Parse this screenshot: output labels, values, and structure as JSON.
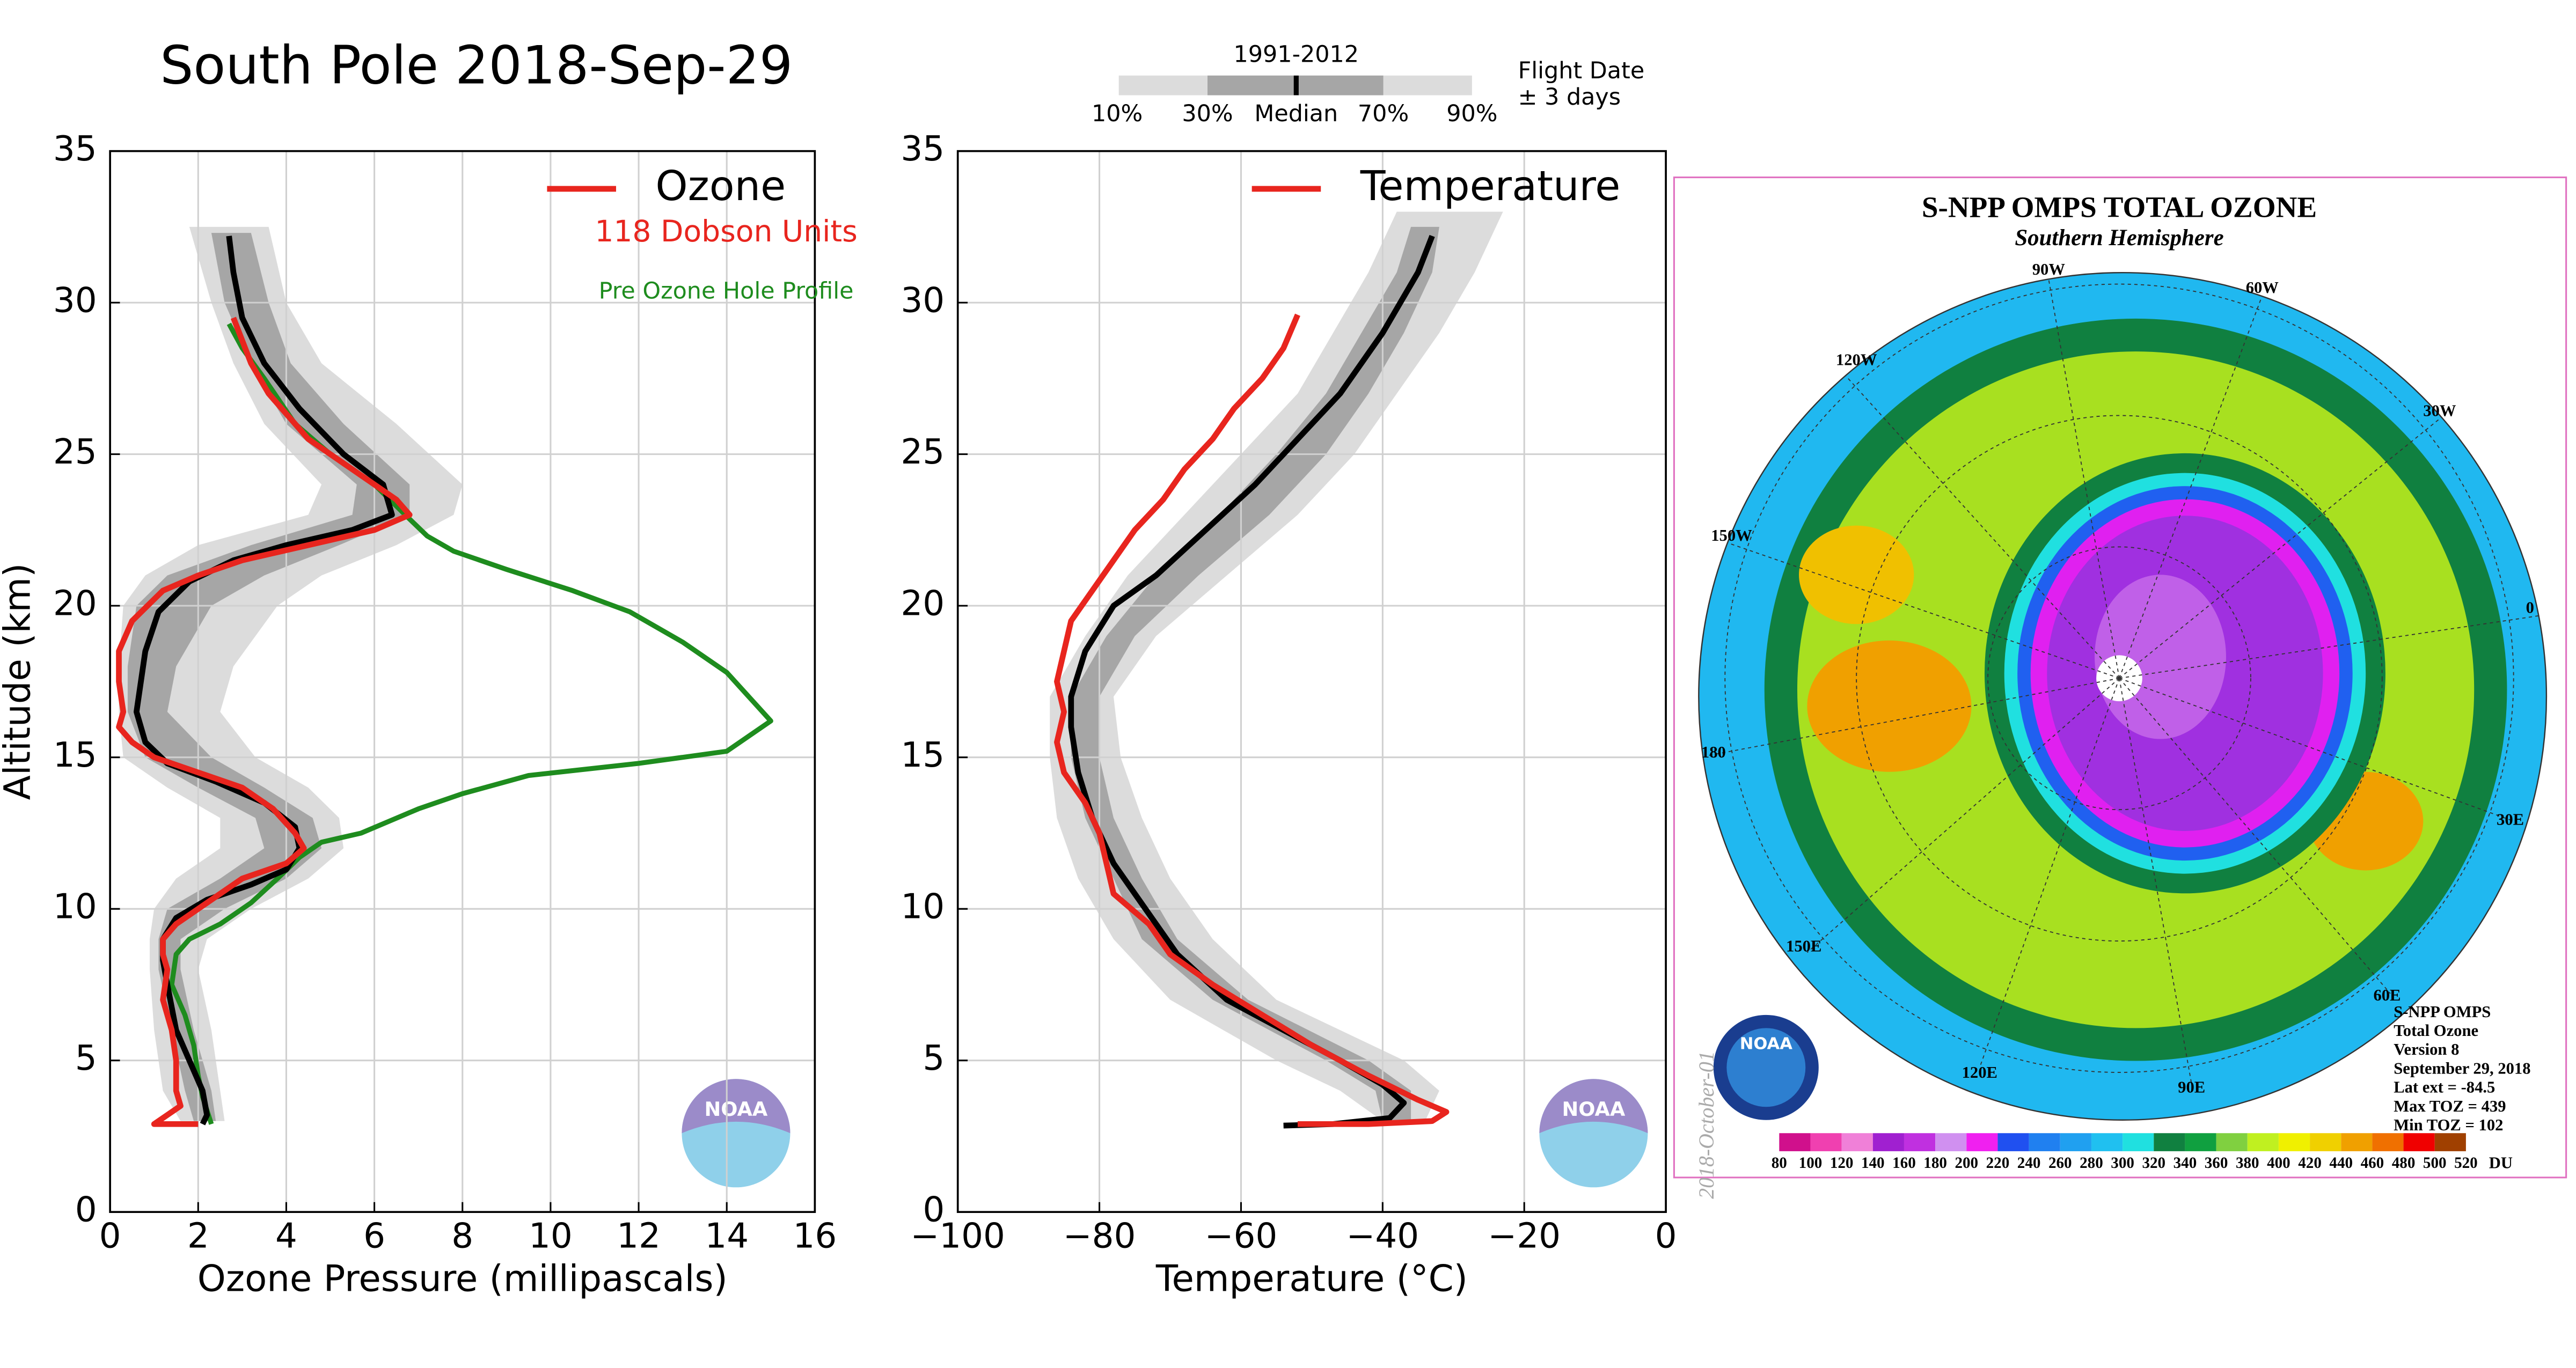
{
  "chart_data": [
    {
      "type": "profile",
      "title": "South Pole 2018-Sep-29",
      "xlabel": "Ozone Pressure (millipascals)",
      "ylabel": "Altitude (km)",
      "xlim": [
        0,
        16
      ],
      "xticks": [
        0,
        2,
        4,
        6,
        8,
        10,
        12,
        14,
        16
      ],
      "ylim": [
        0,
        35
      ],
      "yticks": [
        0,
        5,
        10,
        15,
        20,
        25,
        30,
        35
      ],
      "grid": true,
      "annotations": [
        {
          "text": "118 Dobson Units",
          "color": "#e8251e"
        },
        {
          "text": "Pre Ozone Hole Profile",
          "color": "#1e8c1e"
        }
      ],
      "bands": [
        {
          "color": "#dcdcdc",
          "altitude": [
            32.5,
            30,
            28,
            26,
            24,
            23,
            22,
            21,
            20,
            18,
            16.5,
            15,
            14,
            13,
            12,
            11,
            10,
            9,
            8,
            6,
            4,
            3
          ],
          "lower": [
            1.8,
            2.3,
            2.8,
            3.5,
            4.8,
            4.5,
            2.0,
            0.8,
            0.3,
            0.2,
            0.2,
            0.3,
            1.3,
            2.5,
            2.5,
            1.5,
            1.0,
            0.9,
            0.9,
            1.0,
            1.2,
            1.6
          ],
          "upper": [
            3.6,
            4.0,
            4.8,
            6.5,
            8.0,
            7.8,
            6.5,
            4.8,
            3.8,
            2.8,
            2.5,
            3.3,
            4.5,
            5.2,
            5.3,
            4.5,
            3.2,
            2.2,
            2.0,
            2.3,
            2.5,
            2.6
          ]
        },
        {
          "color": "#a6a6a6",
          "altitude": [
            32.3,
            30,
            28,
            26,
            24,
            23,
            22,
            21,
            20,
            18,
            16.5,
            15,
            14,
            13,
            12,
            11,
            10,
            9,
            8,
            6,
            4,
            3
          ],
          "lower": [
            2.3,
            2.6,
            3.2,
            4.0,
            5.6,
            5.5,
            3.2,
            1.3,
            0.6,
            0.4,
            0.4,
            0.8,
            2.0,
            3.3,
            3.5,
            2.5,
            1.3,
            1.1,
            1.1,
            1.4,
            1.7,
            1.9
          ],
          "upper": [
            3.2,
            3.6,
            4.1,
            5.3,
            6.8,
            6.8,
            5.2,
            3.5,
            2.3,
            1.5,
            1.3,
            2.3,
            3.5,
            4.6,
            4.8,
            4.0,
            2.6,
            1.6,
            1.6,
            1.9,
            2.3,
            2.4
          ]
        }
      ],
      "series": [
        {
          "color": "#1e8c1e",
          "width": 3,
          "values": [
            2.7,
            3,
            3.5,
            4.2,
            5,
            6,
            6.7,
            7.2,
            7.8,
            9,
            10.5,
            11.8,
            13,
            14,
            14.5,
            15,
            14.5,
            14,
            12,
            9.5,
            8,
            7,
            5.7,
            4.8,
            4.3,
            3.8,
            3.2,
            2.5,
            1.8,
            1.5,
            1.4,
            1.7,
            1.9,
            2,
            2.1,
            2.3
          ],
          "altitude": [
            29.3,
            28.5,
            27.5,
            26,
            25,
            24,
            23,
            22.3,
            21.8,
            21.2,
            20.5,
            19.8,
            18.8,
            17.8,
            17,
            16.2,
            15.7,
            15.2,
            14.8,
            14.4,
            13.8,
            13.3,
            12.5,
            12.2,
            11.7,
            11,
            10.2,
            9.5,
            9,
            8.5,
            7.5,
            6.5,
            5.5,
            4.5,
            3.8,
            2.9
          ]
        },
        {
          "color": "#000000",
          "width": 3.5,
          "values": [
            2.7,
            2.8,
            3.0,
            3.5,
            4.3,
            5.3,
            6.2,
            6.4,
            5.5,
            4,
            2.8,
            1.8,
            1.1,
            0.8,
            0.7,
            0.6,
            0.8,
            1.3,
            2.4,
            3.5,
            4.2,
            4.3,
            4,
            3.2,
            2.2,
            1.5,
            1.2,
            1.2,
            1.3,
            1.5,
            1.8,
            2.1,
            2.2,
            2.1
          ],
          "altitude": [
            32.2,
            31,
            29.5,
            28,
            26.5,
            25,
            24,
            23,
            22.5,
            22,
            21.5,
            20.8,
            19.8,
            18.5,
            17.5,
            16.5,
            15.5,
            14.8,
            14.2,
            13.5,
            12.7,
            12,
            11.3,
            10.8,
            10.3,
            9.7,
            9,
            8.3,
            7.5,
            6,
            5,
            4,
            3.2,
            2.9
          ]
        },
        {
          "name": "Ozone",
          "color": "#e8251e",
          "width": 3.5,
          "values": [
            2.8,
            3.2,
            3.6,
            4.5,
            5.5,
            6.5,
            6.8,
            6,
            4.5,
            3,
            2,
            1.2,
            0.5,
            0.2,
            0.2,
            0.3,
            0.2,
            0.5,
            1,
            2,
            3,
            3.7,
            4.2,
            4.4,
            4,
            3,
            2.5,
            2,
            1.5,
            1.2,
            1.2,
            1.3,
            1.2,
            1.4,
            1.5,
            1.5,
            1.6,
            1.3,
            1.0,
            2.0
          ],
          "altitude": [
            29.5,
            28,
            27,
            25.5,
            24.5,
            23.5,
            23,
            22.5,
            22,
            21.5,
            21,
            20.5,
            19.5,
            18.5,
            17.5,
            16.5,
            16,
            15.5,
            15,
            14.5,
            14,
            13.3,
            12.5,
            12,
            11.5,
            11,
            10.5,
            10,
            9.5,
            9,
            8.5,
            8,
            7,
            6,
            5,
            4,
            3.5,
            3.2,
            2.9,
            2.9
          ]
        }
      ]
    },
    {
      "type": "profile",
      "xlabel": "Temperature (°C)",
      "xlim": [
        -100,
        0
      ],
      "xticks": [
        {
          "value": -100,
          "label": "−100"
        },
        {
          "value": -80,
          "label": "−80"
        },
        {
          "value": -60,
          "label": "−60"
        },
        {
          "value": -40,
          "label": "−40"
        },
        {
          "value": -20,
          "label": "−20"
        },
        0
      ],
      "ylim": [
        0,
        35
      ],
      "yticks": [
        0,
        5,
        10,
        15,
        20,
        25,
        30,
        35
      ],
      "grid": true,
      "bands": [
        {
          "color": "#dcdcdc",
          "altitude": [
            33,
            31,
            29,
            27,
            25,
            23,
            21,
            19,
            17,
            15,
            13,
            11,
            9,
            7,
            5,
            4,
            3
          ],
          "lower": [
            -38,
            -42,
            -47,
            -52,
            -60,
            -68,
            -76,
            -82,
            -87,
            -87,
            -86,
            -83,
            -78,
            -70,
            -55,
            -46,
            -40
          ],
          "upper": [
            -23,
            -27,
            -32,
            -38,
            -44,
            -52,
            -62,
            -72,
            -78,
            -77,
            -74,
            -70,
            -64,
            -55,
            -37,
            -32,
            -34
          ]
        },
        {
          "color": "#a6a6a6",
          "altitude": [
            32.5,
            31,
            29,
            27,
            25,
            23,
            21,
            19,
            17,
            15,
            13,
            11,
            9,
            7,
            5,
            4,
            3
          ],
          "lower": [
            -36,
            -38,
            -43,
            -48,
            -55,
            -63,
            -72,
            -79,
            -84,
            -84,
            -82,
            -78,
            -74,
            -64,
            -48,
            -41,
            -40
          ],
          "upper": [
            -32,
            -33,
            -37,
            -42,
            -48,
            -56,
            -66,
            -75,
            -80,
            -80,
            -78,
            -74,
            -69,
            -59,
            -42,
            -36,
            -36
          ]
        }
      ],
      "series": [
        {
          "color": "#000000",
          "width": 3.5,
          "values": [
            -33,
            -35,
            -40,
            -46,
            -52,
            -58,
            -65,
            -72,
            -78,
            -82,
            -84,
            -84,
            -83,
            -81,
            -78,
            -75,
            -72,
            -69,
            -62,
            -54,
            -46,
            -40,
            -37,
            -39,
            -47,
            -54
          ],
          "altitude": [
            32.2,
            31,
            29,
            27,
            25.5,
            24,
            22.5,
            21,
            20,
            18.5,
            17,
            16,
            14.5,
            13,
            11.5,
            10.5,
            9.5,
            8.5,
            7,
            6,
            5,
            4.2,
            3.6,
            3.1,
            2.9,
            2.85
          ]
        },
        {
          "name": "Temperature",
          "color": "#e8251e",
          "width": 3.5,
          "values": [
            -52,
            -54,
            -57,
            -61,
            -64,
            -68,
            -71,
            -75,
            -78,
            -81,
            -84,
            -85,
            -86,
            -85,
            -86,
            -85,
            -82,
            -80,
            -79,
            -78,
            -73,
            -70,
            -64,
            -57,
            -50,
            -42,
            -35,
            -31,
            -33,
            -42,
            -52
          ],
          "altitude": [
            29.6,
            28.5,
            27.5,
            26.5,
            25.5,
            24.5,
            23.5,
            22.5,
            21.5,
            20.5,
            19.5,
            18.5,
            17.5,
            16.5,
            15.5,
            14.5,
            13.5,
            12.5,
            11.5,
            10.5,
            9.5,
            8.5,
            7.5,
            6.5,
            5.5,
            4.5,
            3.7,
            3.3,
            3.0,
            2.9,
            2.9
          ]
        }
      ]
    }
  ],
  "percentile_legend": {
    "period": "1991-2012",
    "labels": [
      "10%",
      "30%",
      "Median",
      "70%",
      "90%"
    ],
    "note": [
      "Flight Date",
      "± 3 days"
    ]
  },
  "logo_text": "NOAA",
  "map": {
    "title": "S-NPP OMPS TOTAL OZONE",
    "subtitle": "Southern Hemisphere",
    "longitudes": [
      "90W",
      "60W",
      "120W",
      "30W",
      "150W",
      "0",
      "180",
      "30E",
      "150E",
      "60E",
      "120E",
      "90E"
    ],
    "info": [
      "S-NPP OMPS",
      "Total Ozone",
      "Version 8",
      "September 29, 2018",
      "Lat ext = -84.5",
      "Max TOZ = 439",
      "Min TOZ = 102"
    ],
    "watermark": "2018-October-01",
    "colorbar": {
      "ticks": [
        80,
        100,
        120,
        140,
        160,
        180,
        200,
        220,
        240,
        260,
        280,
        300,
        320,
        340,
        360,
        380,
        400,
        420,
        440,
        460,
        480,
        500,
        520
      ],
      "colors": [
        "#d0108c",
        "#f040b0",
        "#f080d8",
        "#a020d0",
        "#c030e0",
        "#d090f0",
        "#f020f0",
        "#2050f0",
        "#2080f0",
        "#20a0f0",
        "#20c0f0",
        "#20e0e0",
        "#108040",
        "#10a040",
        "#80d040",
        "#c0f020",
        "#f0f000",
        "#f0d000",
        "#f0a000",
        "#f07000",
        "#f00000",
        "#a04000"
      ],
      "unit": "DU"
    }
  }
}
